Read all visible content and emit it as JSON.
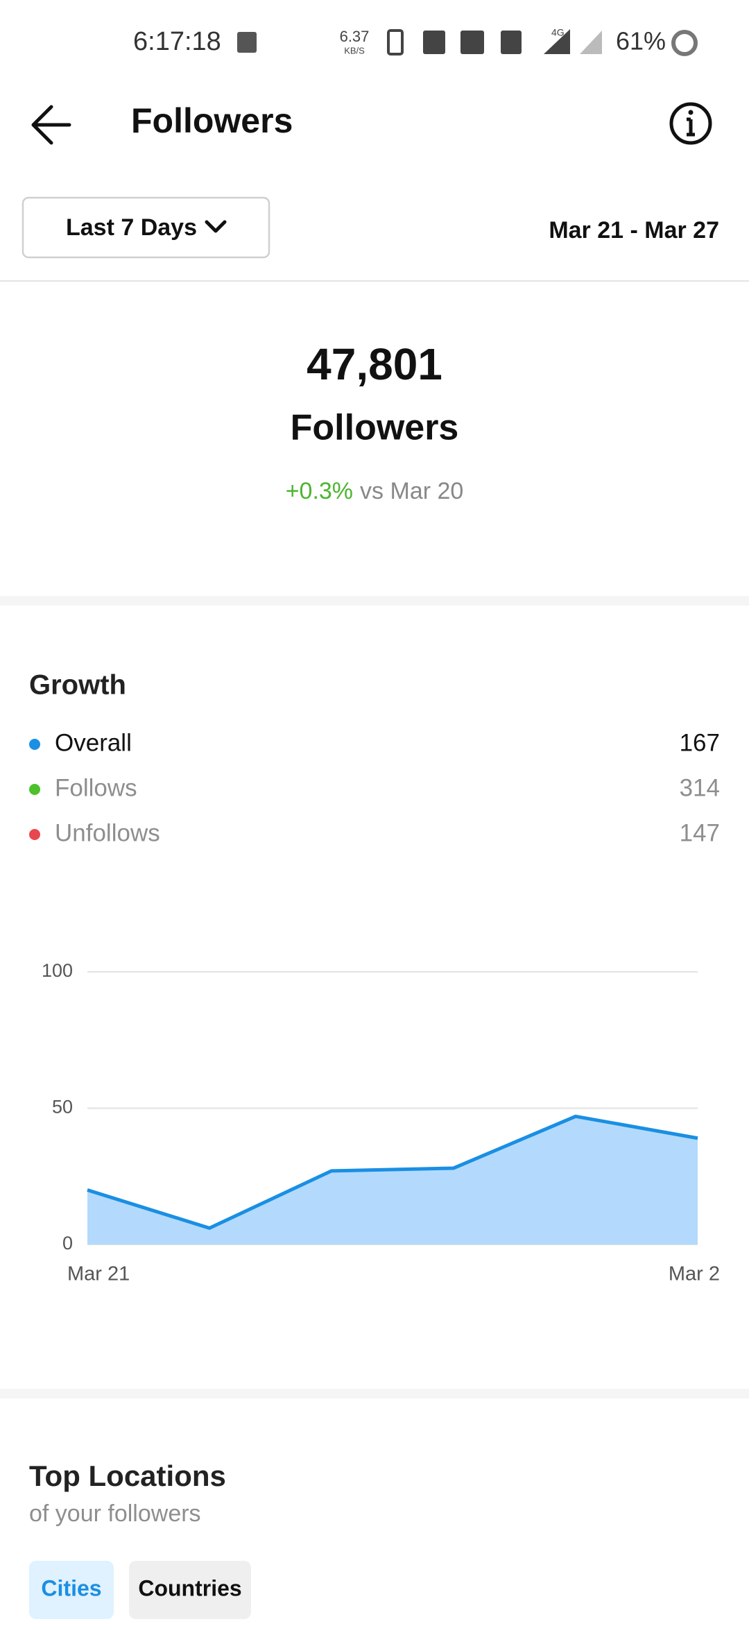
{
  "status": {
    "time": "6:17:18",
    "speed": "6.37",
    "speed_unit": "KB/S",
    "network": "4G",
    "battery": "61%"
  },
  "header": {
    "title": "Followers"
  },
  "filter": {
    "range": "Last 7 Days",
    "dates": "Mar 21 - Mar 27"
  },
  "summary": {
    "count": "47,801",
    "label": "Followers",
    "change": "+0.3%",
    "compare": "vs Mar 20"
  },
  "growth": {
    "title": "Growth",
    "legend": [
      {
        "name": "Overall",
        "value": 167,
        "color": "#1a8fe3"
      },
      {
        "name": "Follows",
        "value": 314,
        "color": "#4cc12a"
      },
      {
        "name": "Unfollows",
        "value": 147,
        "color": "#e8474f"
      }
    ]
  },
  "chart_data": {
    "type": "area",
    "categories": [
      "Mar 21",
      null,
      null,
      null,
      null,
      "Mar 2"
    ],
    "values": [
      20,
      6,
      27,
      28,
      47,
      39
    ],
    "color": "#1a8fe3",
    "fill": "#b3dafc",
    "ylim": [
      0,
      100
    ],
    "yticks": [
      0,
      50,
      100
    ],
    "grid": true
  },
  "locations": {
    "title": "Top Locations",
    "subtitle": "of your followers",
    "tabs": [
      "Cities",
      "Countries"
    ]
  }
}
